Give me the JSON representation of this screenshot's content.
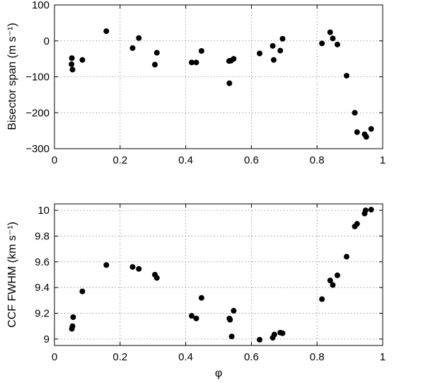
{
  "chart_data": [
    {
      "type": "scatter",
      "ylabel": "Bisector span (m s⁻¹)",
      "xlabel": "",
      "xlim": [
        0,
        1
      ],
      "ylim": [
        -300,
        100
      ],
      "xticks": [
        0,
        0.2,
        0.4,
        0.6,
        0.8,
        1
      ],
      "xtick_labels": [
        "0",
        "0.2",
        "0.4",
        "0.6",
        "0.8",
        "1"
      ],
      "yticks": [
        -300,
        -200,
        -100,
        0,
        100
      ],
      "ytick_labels": [
        "−300",
        "−200",
        "−100",
        "0",
        "100"
      ],
      "grid": true,
      "marker_color": "#000000",
      "points": [
        [
          0.053,
          -48
        ],
        [
          0.052,
          -65
        ],
        [
          0.055,
          -80
        ],
        [
          0.085,
          -53
        ],
        [
          0.158,
          27
        ],
        [
          0.238,
          -20
        ],
        [
          0.257,
          8
        ],
        [
          0.306,
          -66
        ],
        [
          0.312,
          -33
        ],
        [
          0.418,
          -60
        ],
        [
          0.432,
          -60
        ],
        [
          0.448,
          -28
        ],
        [
          0.533,
          -118
        ],
        [
          0.532,
          -56
        ],
        [
          0.538,
          -55
        ],
        [
          0.546,
          -50
        ],
        [
          0.625,
          -35
        ],
        [
          0.665,
          -14
        ],
        [
          0.668,
          -53
        ],
        [
          0.688,
          -27
        ],
        [
          0.695,
          6
        ],
        [
          0.815,
          -7
        ],
        [
          0.84,
          24
        ],
        [
          0.848,
          7
        ],
        [
          0.862,
          -10
        ],
        [
          0.89,
          -97
        ],
        [
          0.915,
          -200
        ],
        [
          0.922,
          -254
        ],
        [
          0.945,
          -260
        ],
        [
          0.95,
          -267
        ],
        [
          0.965,
          -245
        ]
      ]
    },
    {
      "type": "scatter",
      "ylabel": "CCF FWHM (km s⁻¹)",
      "xlabel": "φ",
      "xlim": [
        0,
        1
      ],
      "ylim": [
        8.95,
        10.05
      ],
      "xticks": [
        0,
        0.2,
        0.4,
        0.6,
        0.8,
        1
      ],
      "xtick_labels": [
        "0",
        "0.2",
        "0.4",
        "0.6",
        "0.8",
        "1"
      ],
      "yticks": [
        9,
        9.2,
        9.4,
        9.6,
        9.8,
        10
      ],
      "ytick_labels": [
        "9",
        "9.2",
        "9.4",
        "9.6",
        "9.8",
        "10"
      ],
      "grid": true,
      "marker_color": "#000000",
      "points": [
        [
          0.053,
          9.08
        ],
        [
          0.055,
          9.1
        ],
        [
          0.057,
          9.17
        ],
        [
          0.085,
          9.37
        ],
        [
          0.158,
          9.575
        ],
        [
          0.238,
          9.56
        ],
        [
          0.257,
          9.545
        ],
        [
          0.306,
          9.5
        ],
        [
          0.312,
          9.475
        ],
        [
          0.418,
          9.18
        ],
        [
          0.432,
          9.16
        ],
        [
          0.448,
          9.32
        ],
        [
          0.533,
          9.16
        ],
        [
          0.535,
          9.15
        ],
        [
          0.54,
          9.02
        ],
        [
          0.546,
          9.22
        ],
        [
          0.625,
          8.995
        ],
        [
          0.665,
          9.01
        ],
        [
          0.67,
          9.035
        ],
        [
          0.688,
          9.05
        ],
        [
          0.695,
          9.045
        ],
        [
          0.815,
          9.31
        ],
        [
          0.84,
          9.455
        ],
        [
          0.848,
          9.42
        ],
        [
          0.862,
          9.495
        ],
        [
          0.89,
          9.64
        ],
        [
          0.915,
          9.875
        ],
        [
          0.922,
          9.895
        ],
        [
          0.945,
          9.975
        ],
        [
          0.948,
          10.0
        ],
        [
          0.965,
          10.005
        ]
      ]
    }
  ]
}
